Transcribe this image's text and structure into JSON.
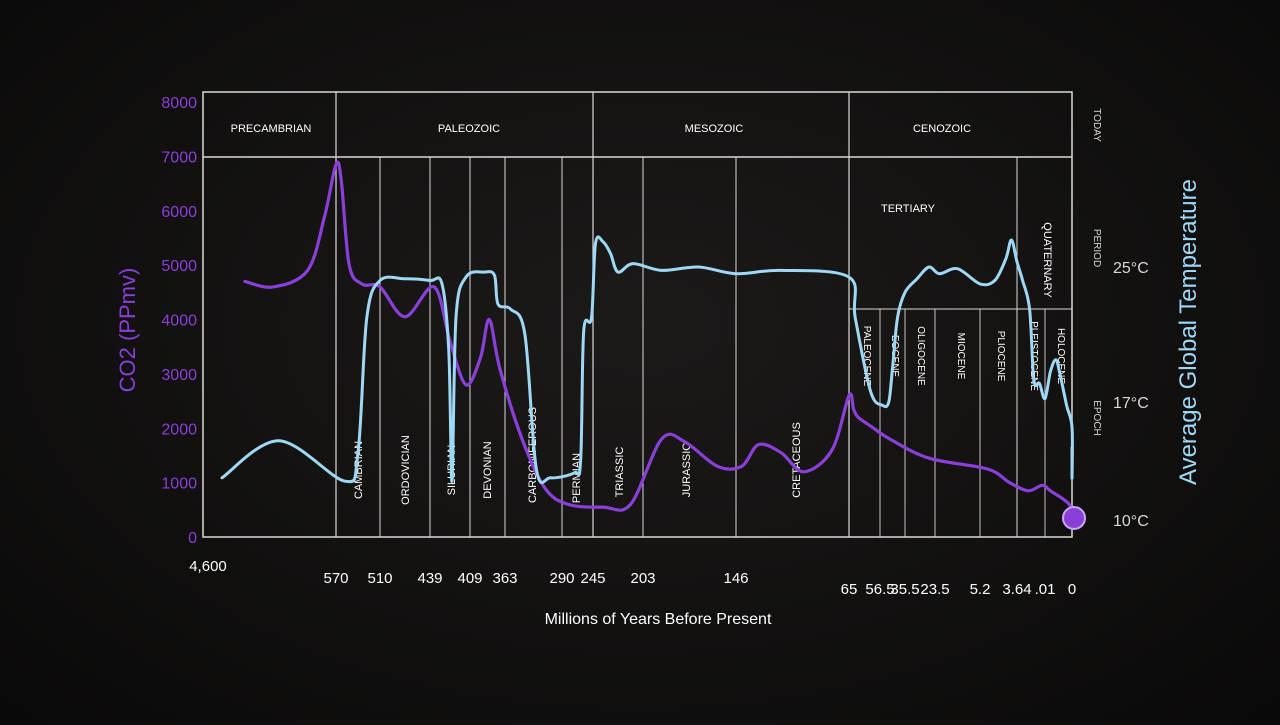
{
  "chart_data": {
    "type": "line",
    "title": "",
    "xlabel": "Millions of Years Before Present",
    "y_left_label": "CO2 (PPmv)",
    "y_right_label": "Average Global Temperature",
    "y_left_ticks": [
      "0",
      "1000",
      "2000",
      "3000",
      "4000",
      "5000",
      "6000",
      "7000",
      "8000"
    ],
    "y_left_range": [
      0,
      8000
    ],
    "y_right_ticks": [
      {
        "label": "10°C",
        "value": 10
      },
      {
        "label": "17°C",
        "value": 17
      },
      {
        "label": "25°C",
        "value": 25
      }
    ],
    "x_ticks": [
      "4,600",
      "570",
      "510",
      "439",
      "409",
      "363",
      "290",
      "245",
      "203",
      "146",
      "65",
      "56.5",
      "35.5",
      "23.5",
      "5.2",
      "3.64",
      ".01",
      "0"
    ],
    "eras": [
      "PRECAMBRIAN",
      "PALEOZOIC",
      "MESOZOIC",
      "CENOZOIC"
    ],
    "periods": [
      "CAMBRIAN",
      "ORDOVICIAN",
      "SILURIAN",
      "DEVONIAN",
      "CARBONIFEROUS",
      "PERMIAN",
      "TRIASSIC",
      "JURASSIC",
      "CRETACEOUS",
      "TERTIARY",
      "QUATERNARY"
    ],
    "epochs": [
      "PALEOCENE",
      "EOCENE",
      "OLIGOCENE",
      "MIOCENE",
      "PLIOCENE",
      "PLEISTOCENE",
      "HOLOCENE"
    ],
    "row_labels": [
      "TODAY",
      "PERIOD",
      "EPOCH"
    ],
    "series": [
      {
        "name": "CO2 (PPmv)",
        "axis": "left",
        "color": "#8b3fd9",
        "points": [
          [
            0.2,
            4700
          ],
          [
            0.45,
            4600
          ],
          [
            0.75,
            4900
          ],
          [
            0.9,
            5900
          ],
          [
            1.0,
            6850
          ],
          [
            1.12,
            6550
          ],
          [
            1.3,
            5000
          ],
          [
            1.6,
            4650
          ],
          [
            2.0,
            4600
          ],
          [
            2.5,
            4050
          ],
          [
            3.1,
            4600
          ],
          [
            3.5,
            3600
          ],
          [
            3.9,
            2800
          ],
          [
            4.3,
            3300
          ],
          [
            4.55,
            4000
          ],
          [
            4.85,
            3100
          ],
          [
            5.3,
            1800
          ],
          [
            5.7,
            900
          ],
          [
            6.2,
            600
          ],
          [
            7.2,
            550
          ],
          [
            7.75,
            600
          ],
          [
            8.2,
            1800
          ],
          [
            8.45,
            1750
          ],
          [
            8.8,
            1300
          ],
          [
            9.05,
            1300
          ],
          [
            9.2,
            1700
          ],
          [
            9.4,
            1550
          ],
          [
            9.6,
            1200
          ],
          [
            9.85,
            1600
          ],
          [
            10.0,
            2600
          ],
          [
            10.15,
            2350
          ],
          [
            10.3,
            2200
          ],
          [
            10.8,
            2000
          ],
          [
            11.4,
            1800
          ],
          [
            12.8,
            1450
          ],
          [
            14.2,
            1250
          ],
          [
            14.8,
            1000
          ],
          [
            15.4,
            850
          ],
          [
            15.9,
            950
          ],
          [
            16.2,
            850
          ],
          [
            16.9,
            600
          ],
          [
            17.2,
            300
          ],
          [
            18.0,
            300
          ],
          [
            18.9,
            350
          ],
          [
            19.0,
            350
          ]
        ]
      },
      {
        "name": "Average Global Temperature",
        "axis": "right",
        "color": "#9ed8f5",
        "points": [
          [
            0.0,
            12.5
          ],
          [
            0.5,
            14.7
          ],
          [
            1.2,
            12.3
          ],
          [
            1.5,
            14.0
          ],
          [
            1.7,
            22.0
          ],
          [
            2.0,
            24.2
          ],
          [
            2.5,
            24.3
          ],
          [
            3.0,
            24.2
          ],
          [
            3.3,
            24.0
          ],
          [
            3.47,
            20.0
          ],
          [
            3.55,
            12.3
          ],
          [
            3.65,
            22.0
          ],
          [
            3.9,
            24.4
          ],
          [
            4.4,
            24.7
          ],
          [
            4.7,
            24.5
          ],
          [
            4.8,
            22.8
          ],
          [
            5.1,
            22.5
          ],
          [
            5.35,
            21.0
          ],
          [
            5.55,
            13.0
          ],
          [
            5.8,
            12.5
          ],
          [
            6.4,
            12.8
          ],
          [
            6.6,
            13.5
          ],
          [
            6.7,
            21.2
          ],
          [
            6.95,
            22.0
          ],
          [
            7.05,
            26.4
          ],
          [
            7.2,
            26.5
          ],
          [
            7.35,
            25.8
          ],
          [
            7.5,
            24.7
          ],
          [
            7.8,
            25.2
          ],
          [
            8.2,
            24.8
          ],
          [
            8.6,
            25.0
          ],
          [
            9.0,
            24.6
          ],
          [
            9.4,
            24.8
          ],
          [
            10.0,
            24.4
          ],
          [
            10.2,
            22.0
          ],
          [
            10.7,
            17.6
          ],
          [
            11.1,
            16.8
          ],
          [
            11.35,
            17.0
          ],
          [
            11.5,
            19.0
          ],
          [
            11.7,
            22.0
          ],
          [
            12.0,
            23.5
          ],
          [
            12.4,
            24.3
          ],
          [
            12.8,
            25.0
          ],
          [
            13.1,
            24.6
          ],
          [
            13.5,
            24.9
          ],
          [
            14.0,
            24.0
          ],
          [
            14.4,
            24.2
          ],
          [
            14.7,
            25.5
          ],
          [
            14.85,
            26.6
          ],
          [
            15.0,
            25.3
          ],
          [
            15.2,
            24.2
          ],
          [
            15.45,
            22.5
          ],
          [
            15.6,
            18.3
          ],
          [
            15.8,
            18.1
          ],
          [
            16.0,
            17.2
          ],
          [
            16.2,
            18.8
          ],
          [
            16.4,
            19.5
          ],
          [
            16.55,
            18.7
          ],
          [
            16.8,
            16.8
          ],
          [
            17.1,
            15.5
          ],
          [
            17.2,
            12.5
          ],
          [
            17.35,
            14.0
          ],
          [
            17.5,
            12.5
          ],
          [
            17.7,
            14.2
          ],
          [
            17.9,
            12.5
          ],
          [
            18.1,
            14.3
          ],
          [
            18.3,
            12.8
          ],
          [
            18.5,
            14.0
          ],
          [
            18.7,
            13.2
          ],
          [
            18.85,
            14.0
          ],
          [
            18.95,
            13.6
          ]
        ]
      }
    ],
    "grid": false,
    "legend": "none"
  }
}
